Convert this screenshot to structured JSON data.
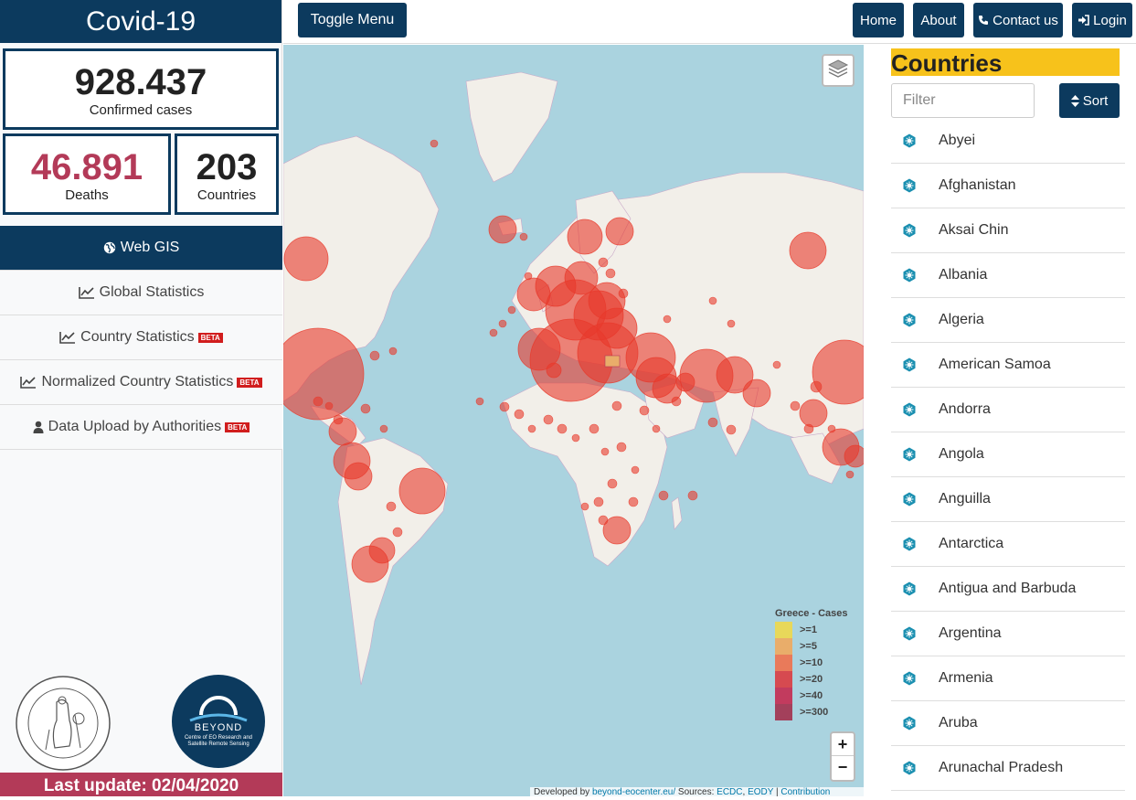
{
  "brand": {
    "title": "Covid-19"
  },
  "stats": {
    "confirmed": {
      "value": "928.437",
      "label": "Confirmed cases"
    },
    "deaths": {
      "value": "46.891",
      "label": "Deaths"
    },
    "countries": {
      "value": "203",
      "label": "Countries"
    }
  },
  "nav": {
    "items": [
      {
        "label": "Web GIS",
        "icon": "globe-icon",
        "beta": ""
      },
      {
        "label": "Global Statistics",
        "icon": "line-chart-icon",
        "beta": ""
      },
      {
        "label": "Country Statistics",
        "icon": "line-chart-icon",
        "beta": "BETA"
      },
      {
        "label": "Normalized Country Statistics",
        "icon": "line-chart-icon",
        "beta": "BETA"
      },
      {
        "label": "Data Upload by Authorities",
        "icon": "user-icon",
        "beta": "BETA"
      }
    ]
  },
  "logos": {
    "noa": "ΕΘΝΙΚΟΝ ΑΣΤΕΡΟΣΚΟΠΕΙΟΝ ΑΘΗΝΩΝ · NATIONAL OBSERVATORY OF ATHENS",
    "beyond_title": "BEYOND",
    "beyond_sub": "Centre of EO Research and Satellite Remote Sensing"
  },
  "footer": {
    "last_update": "Last update: 02/04/2020"
  },
  "topbar": {
    "toggle": "Toggle Menu",
    "home": "Home",
    "about": "About",
    "contact": "Contact us",
    "login": "Login"
  },
  "map": {
    "legend": {
      "title": "Greece - Cases",
      "entries": [
        {
          "label": ">=1",
          "color": "#e8d85a"
        },
        {
          "label": ">=5",
          "color": "#e9ad6a"
        },
        {
          "label": ">=10",
          "color": "#e97a5a"
        },
        {
          "label": ">=20",
          "color": "#d64a50"
        },
        {
          "label": ">=40",
          "color": "#c23b5e"
        },
        {
          "label": ">=300",
          "color": "#a3405b"
        }
      ]
    },
    "zoom_in": "+",
    "zoom_out": "−",
    "attribution": {
      "prefix": "Developed by ",
      "site": "beyond-eocenter.eu/",
      "sources": " Sources: ",
      "src1": "ECDC",
      "src2": "EODY",
      "contrib": "Contribution"
    },
    "colors": {
      "water": "#aad3df",
      "land": "#f2efe9",
      "bubble": "#e8392b"
    }
  },
  "countries_panel": {
    "title": "Countries",
    "filter_placeholder": "Filter",
    "sort_label": "Sort",
    "items": [
      "Abyei",
      "Afghanistan",
      "Aksai Chin",
      "Albania",
      "Algeria",
      "American Samoa",
      "Andorra",
      "Angola",
      "Anguilla",
      "Antarctica",
      "Antigua and Barbuda",
      "Argentina",
      "Armenia",
      "Aruba",
      "Arunachal Pradesh"
    ]
  }
}
